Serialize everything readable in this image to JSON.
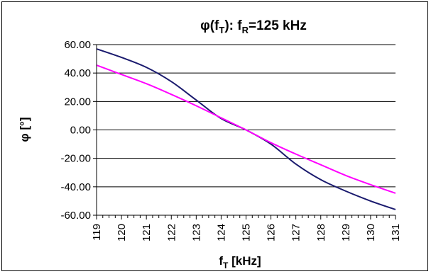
{
  "chart_data": {
    "type": "line",
    "title": {
      "prefix": "φ(f",
      "sub1": "T",
      "middle": "): f",
      "sub2": "R",
      "suffix": "=125 kHz"
    },
    "xlabel": {
      "main": "f",
      "sub": "T",
      "suffix": " [kHz]"
    },
    "ylabel": "φ [°]",
    "xlim": [
      119,
      131
    ],
    "ylim": [
      -60,
      60
    ],
    "x_ticks": [
      "119",
      "120",
      "121",
      "122",
      "123",
      "124",
      "125",
      "126",
      "127",
      "128",
      "129",
      "130",
      "131"
    ],
    "y_ticks": [
      "60.00",
      "40.00",
      "20.00",
      "0.00",
      "-20.00",
      "-40.00",
      "-60.00"
    ],
    "grid": "horizontal",
    "legend": "none",
    "series": [
      {
        "color": "#1a1a6e",
        "x": [
          119,
          120,
          121,
          122,
          123,
          124,
          125,
          126,
          127,
          128,
          129,
          130,
          131
        ],
        "y": [
          57,
          51,
          44,
          34,
          21,
          8,
          0,
          -10,
          -24,
          -35,
          -43,
          -50,
          -56
        ]
      },
      {
        "color": "#ff00ff",
        "x": [
          119,
          120,
          121,
          122,
          123,
          124,
          125,
          126,
          127,
          128,
          129,
          130,
          131
        ],
        "y": [
          45.5,
          39,
          32.5,
          25,
          17,
          8.5,
          0,
          -9,
          -17,
          -24.5,
          -32,
          -38.5,
          -44.5
        ]
      }
    ]
  }
}
